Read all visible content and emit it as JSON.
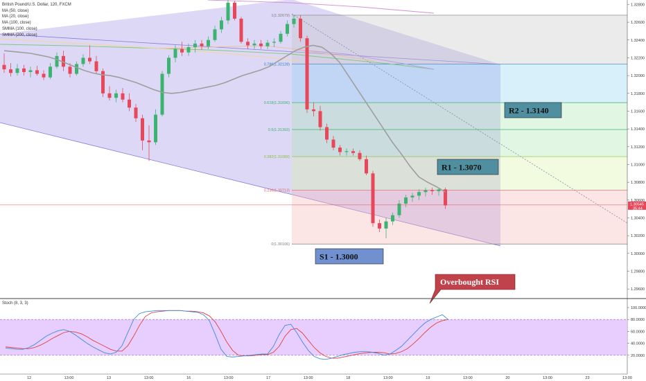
{
  "header": {
    "title": "British Pound/U.S. Dollar, 120, FXCM"
  },
  "indicators": [
    {
      "label": "MA (50, close)",
      "color": "#9e9e9e"
    },
    {
      "label": "MA (20, close)",
      "color": "#f2b98e"
    },
    {
      "label": "MA (100, close)",
      "color": "#f5d59a"
    },
    {
      "label": "SMMA (100, close)",
      "color": "#7fc97f"
    },
    {
      "label": "SMMA (200, close)",
      "color": "#d48fd4"
    }
  ],
  "price_axis": {
    "ticks": [
      "1.32800",
      "1.32600",
      "1.32400",
      "1.32200",
      "1.32000",
      "1.31800",
      "1.31600",
      "1.31400",
      "1.31200",
      "1.31000",
      "1.30800",
      "1.30600",
      "1.30400",
      "1.30200",
      "1.30000",
      "1.29800",
      "1.29600"
    ],
    "current_price": "1.30545",
    "countdown": "35:44"
  },
  "stoch_axis": {
    "ticks": [
      "100.0000",
      "80.0000",
      "60.0000",
      "40.0000",
      "20.0000"
    ]
  },
  "time_axis": {
    "ticks": [
      "12",
      "13:00",
      "13",
      "13:00",
      "16",
      "13:00",
      "17",
      "13:00",
      "18",
      "13:00",
      "19",
      "13:00",
      "20",
      "13:00",
      "23",
      "13:00"
    ]
  },
  "fibonacci": [
    {
      "ratio": 1,
      "label": "1(1.32679)",
      "price": 1.32679
    },
    {
      "ratio": 0.786,
      "label": "0.786(1.32128)",
      "price": 1.32128
    },
    {
      "ratio": 0.618,
      "label": "0.618(1.31696)",
      "price": 1.31696
    },
    {
      "ratio": 0.5,
      "label": "0.5(1.31393)",
      "price": 1.31393
    },
    {
      "ratio": 0.382,
      "label": "0.382(1.31089)",
      "price": 1.31089
    },
    {
      "ratio": 0.236,
      "label": "0.236(1.30713)",
      "price": 1.30713
    },
    {
      "ratio": 0,
      "label": "0(1.30106)",
      "price": 1.30106
    }
  ],
  "annotations": {
    "r2": "R2 - 1.3140",
    "r1": "R1 - 1.3070",
    "s1": "S1 - 1.3000",
    "rsi": "Overbought RSI"
  },
  "stoch_panel": {
    "label": "Stoch (8, 3, 3)",
    "upper": 80,
    "lower": 20
  },
  "colors": {
    "up": "#26a69a",
    "up_fill": "#3cb371",
    "down": "#e8475a",
    "channel_fill": "#9c8ee6",
    "support_box": "#7090d0",
    "resistance_box": "#4f8fa0",
    "rsi_box": "#c0424a",
    "stoch_fill": "#e6c8ff"
  },
  "chart_data": {
    "type": "candlestick",
    "symbol": "British Pound/U.S. Dollar",
    "interval": "120",
    "ylim": [
      1.295,
      1.3285
    ],
    "candles": [
      {
        "o": 1.3212,
        "h": 1.3225,
        "l": 1.3203,
        "c": 1.3207
      },
      {
        "o": 1.3207,
        "h": 1.3214,
        "l": 1.3199,
        "c": 1.3203
      },
      {
        "o": 1.3203,
        "h": 1.3213,
        "l": 1.32,
        "c": 1.3208
      },
      {
        "o": 1.3208,
        "h": 1.3212,
        "l": 1.32,
        "c": 1.3204
      },
      {
        "o": 1.3204,
        "h": 1.321,
        "l": 1.3198,
        "c": 1.3206
      },
      {
        "o": 1.3206,
        "h": 1.3211,
        "l": 1.32,
        "c": 1.3202
      },
      {
        "o": 1.3202,
        "h": 1.3206,
        "l": 1.3195,
        "c": 1.3198
      },
      {
        "o": 1.3198,
        "h": 1.3214,
        "l": 1.3196,
        "c": 1.321
      },
      {
        "o": 1.321,
        "h": 1.3226,
        "l": 1.3208,
        "c": 1.3222
      },
      {
        "o": 1.3222,
        "h": 1.3228,
        "l": 1.3205,
        "c": 1.321
      },
      {
        "o": 1.321,
        "h": 1.3214,
        "l": 1.3198,
        "c": 1.3202
      },
      {
        "o": 1.3202,
        "h": 1.3216,
        "l": 1.32,
        "c": 1.3213
      },
      {
        "o": 1.3213,
        "h": 1.3224,
        "l": 1.321,
        "c": 1.322
      },
      {
        "o": 1.322,
        "h": 1.3234,
        "l": 1.3213,
        "c": 1.3216
      },
      {
        "o": 1.3216,
        "h": 1.3222,
        "l": 1.3202,
        "c": 1.3205
      },
      {
        "o": 1.3205,
        "h": 1.3208,
        "l": 1.3176,
        "c": 1.318
      },
      {
        "o": 1.318,
        "h": 1.3188,
        "l": 1.3172,
        "c": 1.3175
      },
      {
        "o": 1.3175,
        "h": 1.3184,
        "l": 1.317,
        "c": 1.318
      },
      {
        "o": 1.318,
        "h": 1.3186,
        "l": 1.317,
        "c": 1.3173
      },
      {
        "o": 1.3173,
        "h": 1.318,
        "l": 1.316,
        "c": 1.3164
      },
      {
        "o": 1.3164,
        "h": 1.3168,
        "l": 1.3148,
        "c": 1.3152
      },
      {
        "o": 1.3152,
        "h": 1.3156,
        "l": 1.3116,
        "c": 1.3127
      },
      {
        "o": 1.3127,
        "h": 1.3144,
        "l": 1.3104,
        "c": 1.3125
      },
      {
        "o": 1.3125,
        "h": 1.3162,
        "l": 1.3122,
        "c": 1.3156
      },
      {
        "o": 1.3156,
        "h": 1.3205,
        "l": 1.3154,
        "c": 1.3202
      },
      {
        "o": 1.3202,
        "h": 1.3223,
        "l": 1.3198,
        "c": 1.322
      },
      {
        "o": 1.322,
        "h": 1.3234,
        "l": 1.3215,
        "c": 1.323
      },
      {
        "o": 1.323,
        "h": 1.3238,
        "l": 1.3222,
        "c": 1.3226
      },
      {
        "o": 1.3226,
        "h": 1.3236,
        "l": 1.3222,
        "c": 1.3232
      },
      {
        "o": 1.3232,
        "h": 1.324,
        "l": 1.3226,
        "c": 1.3236
      },
      {
        "o": 1.3236,
        "h": 1.324,
        "l": 1.3229,
        "c": 1.3233
      },
      {
        "o": 1.3233,
        "h": 1.3244,
        "l": 1.323,
        "c": 1.324
      },
      {
        "o": 1.324,
        "h": 1.3256,
        "l": 1.3238,
        "c": 1.3252
      },
      {
        "o": 1.3252,
        "h": 1.3266,
        "l": 1.3248,
        "c": 1.3262
      },
      {
        "o": 1.3262,
        "h": 1.3285,
        "l": 1.3258,
        "c": 1.3282
      },
      {
        "o": 1.3282,
        "h": 1.3284,
        "l": 1.3262,
        "c": 1.3264
      },
      {
        "o": 1.3264,
        "h": 1.3266,
        "l": 1.3236,
        "c": 1.3238
      },
      {
        "o": 1.3238,
        "h": 1.3242,
        "l": 1.323,
        "c": 1.3234
      },
      {
        "o": 1.3234,
        "h": 1.324,
        "l": 1.323,
        "c": 1.3236
      },
      {
        "o": 1.3236,
        "h": 1.324,
        "l": 1.323,
        "c": 1.3233
      },
      {
        "o": 1.3233,
        "h": 1.324,
        "l": 1.323,
        "c": 1.3237
      },
      {
        "o": 1.3237,
        "h": 1.3242,
        "l": 1.3232,
        "c": 1.3238
      },
      {
        "o": 1.3238,
        "h": 1.325,
        "l": 1.3236,
        "c": 1.3247
      },
      {
        "o": 1.3247,
        "h": 1.3262,
        "l": 1.3244,
        "c": 1.3258
      },
      {
        "o": 1.3258,
        "h": 1.3268,
        "l": 1.3254,
        "c": 1.3264
      },
      {
        "o": 1.3264,
        "h": 1.3268,
        "l": 1.3238,
        "c": 1.3242
      },
      {
        "o": 1.3242,
        "h": 1.3245,
        "l": 1.3158,
        "c": 1.3162
      },
      {
        "o": 1.3162,
        "h": 1.317,
        "l": 1.3154,
        "c": 1.316
      },
      {
        "o": 1.316,
        "h": 1.3166,
        "l": 1.3138,
        "c": 1.3142
      },
      {
        "o": 1.3142,
        "h": 1.3146,
        "l": 1.3124,
        "c": 1.3128
      },
      {
        "o": 1.3128,
        "h": 1.3132,
        "l": 1.3116,
        "c": 1.3119
      },
      {
        "o": 1.3119,
        "h": 1.3122,
        "l": 1.311,
        "c": 1.3114
      },
      {
        "o": 1.3114,
        "h": 1.3118,
        "l": 1.311,
        "c": 1.3115
      },
      {
        "o": 1.3115,
        "h": 1.3118,
        "l": 1.311,
        "c": 1.3113
      },
      {
        "o": 1.3113,
        "h": 1.3116,
        "l": 1.3104,
        "c": 1.3106
      },
      {
        "o": 1.3106,
        "h": 1.311,
        "l": 1.3088,
        "c": 1.309
      },
      {
        "o": 1.309,
        "h": 1.3093,
        "l": 1.303,
        "c": 1.3034
      },
      {
        "o": 1.3034,
        "h": 1.3038,
        "l": 1.3024,
        "c": 1.3028
      },
      {
        "o": 1.3028,
        "h": 1.304,
        "l": 1.3017,
        "c": 1.3036
      },
      {
        "o": 1.3036,
        "h": 1.3046,
        "l": 1.3032,
        "c": 1.3043
      },
      {
        "o": 1.3043,
        "h": 1.306,
        "l": 1.304,
        "c": 1.3056
      },
      {
        "o": 1.3056,
        "h": 1.3066,
        "l": 1.3052,
        "c": 1.3063
      },
      {
        "o": 1.3063,
        "h": 1.3068,
        "l": 1.3058,
        "c": 1.3065
      },
      {
        "o": 1.3065,
        "h": 1.3072,
        "l": 1.306,
        "c": 1.3069
      },
      {
        "o": 1.3069,
        "h": 1.3074,
        "l": 1.3064,
        "c": 1.3071
      },
      {
        "o": 1.3071,
        "h": 1.3074,
        "l": 1.3066,
        "c": 1.307
      },
      {
        "o": 1.307,
        "h": 1.3073,
        "l": 1.3065,
        "c": 1.3072
      },
      {
        "o": 1.3072,
        "h": 1.3074,
        "l": 1.305,
        "c": 1.3054
      }
    ],
    "ma50": [
      1.3228,
      1.3227,
      1.3226,
      1.3225,
      1.3223,
      1.3221,
      1.3218,
      1.3214,
      1.321,
      1.3206,
      1.3203,
      1.3201,
      1.32,
      1.3198,
      1.3195,
      1.3192,
      1.3188,
      1.3184,
      1.3181,
      1.318,
      1.3181,
      1.3183,
      1.3185,
      1.3187,
      1.3189,
      1.3192,
      1.3196,
      1.32,
      1.3203,
      1.3206,
      1.321,
      1.3216,
      1.3222,
      1.3228,
      1.3232,
      1.3234,
      1.3232,
      1.3225,
      1.3215,
      1.32,
      1.3185,
      1.317,
      1.3155,
      1.314,
      1.3125,
      1.3112,
      1.3098,
      1.3086,
      1.308,
      1.3075,
      1.3069
    ],
    "ma50_start": 0,
    "stoch": {
      "ylim": [
        0,
        100
      ],
      "k": [
        32,
        31,
        30,
        30,
        33,
        38,
        45,
        52,
        57,
        61,
        63,
        60,
        54,
        47,
        40,
        34,
        29,
        24,
        22,
        25,
        36,
        58,
        80,
        90,
        93,
        94,
        95,
        95,
        95,
        95,
        95,
        94,
        93,
        92,
        88,
        78,
        55,
        30,
        18,
        17,
        18,
        19,
        20,
        21,
        22,
        22,
        35,
        55,
        70,
        72,
        58,
        42,
        28,
        18,
        14,
        13,
        15,
        18,
        21,
        23,
        25,
        26,
        26,
        25,
        23,
        20,
        22,
        28,
        35,
        45,
        55,
        65,
        74,
        80,
        84,
        88,
        80
      ],
      "d": [
        34,
        33,
        32,
        31,
        31,
        33,
        37,
        42,
        48,
        53,
        58,
        60,
        59,
        56,
        51,
        45,
        40,
        35,
        30,
        27,
        27,
        36,
        52,
        70,
        85,
        91,
        93,
        94,
        95,
        95,
        95,
        94,
        94,
        93,
        91,
        86,
        76,
        60,
        42,
        28,
        20,
        19,
        19,
        20,
        21,
        21,
        25,
        35,
        52,
        63,
        65,
        57,
        45,
        33,
        24,
        18,
        15,
        15,
        17,
        19,
        21,
        23,
        24,
        25,
        25,
        24,
        22,
        23,
        26,
        31,
        39,
        48,
        58,
        67,
        74,
        78,
        80
      ]
    }
  }
}
